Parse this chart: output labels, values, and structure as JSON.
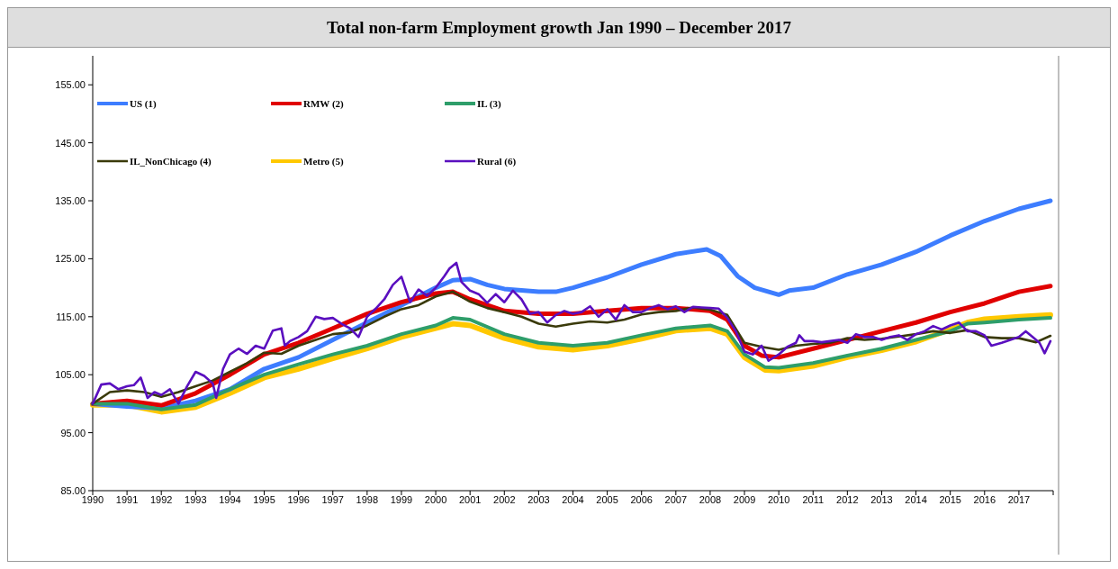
{
  "chart_data": {
    "type": "line",
    "title": "Total non-farm Employment growth Jan 1990 – December 2017",
    "xlim": [
      1990,
      2018
    ],
    "xticks": [
      1990,
      1991,
      1992,
      1993,
      1994,
      1995,
      1996,
      1997,
      1998,
      1999,
      2000,
      2001,
      2002,
      2003,
      2004,
      2005,
      2006,
      2007,
      2008,
      2009,
      2010,
      2011,
      2012,
      2013,
      2014,
      2015,
      2016,
      2017,
      {
        "value": 2018,
        "label": null
      }
    ],
    "ylim": [
      85,
      160
    ],
    "yticks": [
      {
        "value": 85,
        "label": "85.00"
      },
      {
        "value": 95,
        "label": "95.00"
      },
      {
        "value": 105,
        "label": "105.00"
      },
      {
        "value": 115,
        "label": "115.00"
      },
      {
        "value": 125,
        "label": "125.00"
      },
      {
        "value": 135,
        "label": "135.00"
      },
      {
        "value": 145,
        "label": "145.00"
      },
      {
        "value": 155,
        "label": "155.00"
      }
    ],
    "grid": false,
    "legend": "top left",
    "marker": "none",
    "line_style": "solid",
    "series": [
      {
        "name": "US (1)",
        "color": "#3d7dff",
        "x": [
          1990,
          1991,
          1992,
          1993,
          1994,
          1995,
          1996,
          1997,
          1998,
          1999,
          2000,
          2000.5,
          2001,
          2001.5,
          2002,
          2003,
          2003.5,
          2004,
          2005,
          2006,
          2007,
          2007.9,
          2008.3,
          2008.8,
          2009.3,
          2010,
          2010.3,
          2011,
          2012,
          2013,
          2014,
          2015,
          2016,
          2017,
          2017.92
        ],
        "values": [
          100,
          99.5,
          99.2,
          100.5,
          102.5,
          106,
          108,
          111,
          114,
          117,
          120,
          121.3,
          121.5,
          120.5,
          119.8,
          119.3,
          119.3,
          120,
          121.8,
          124,
          125.8,
          126.6,
          125.5,
          122,
          120,
          118.8,
          119.5,
          120,
          122.3,
          124,
          126.2,
          129,
          131.5,
          133.6,
          135
        ]
      },
      {
        "name": "RMW (2)",
        "color": "#e00000",
        "x": [
          1990,
          1991,
          1992,
          1993,
          1994,
          1995,
          1996,
          1997,
          1998,
          1999,
          2000,
          2000.5,
          2001,
          2002,
          2003,
          2004,
          2005,
          2006,
          2007,
          2008,
          2008.5,
          2009,
          2009.5,
          2010,
          2011,
          2012,
          2013,
          2014,
          2015,
          2016,
          2017,
          2017.92
        ],
        "values": [
          100,
          100.5,
          99.7,
          101.8,
          105,
          108.5,
          110.5,
          113,
          115.5,
          117.5,
          119,
          119.3,
          118,
          116,
          115.5,
          115.5,
          116,
          116.5,
          116.5,
          116,
          114.5,
          110,
          108.3,
          108,
          109.5,
          111,
          112.5,
          114,
          115.8,
          117.3,
          119.3,
          120.3
        ]
      },
      {
        "name": "IL (3)",
        "color": "#2e9e6a",
        "x": [
          1990,
          1991,
          1992,
          1993,
          1994,
          1995,
          1996,
          1997,
          1998,
          1999,
          2000,
          2000.5,
          2001,
          2002,
          2003,
          2004,
          2005,
          2006,
          2007,
          2008,
          2008.5,
          2009,
          2009.6,
          2010,
          2011,
          2012,
          2013,
          2014,
          2015,
          2015.5,
          2016,
          2017,
          2017.92
        ],
        "values": [
          100,
          100,
          99,
          99.8,
          102.5,
          105,
          106.8,
          108.5,
          110,
          112,
          113.5,
          114.8,
          114.5,
          112,
          110.5,
          110,
          110.5,
          111.8,
          113,
          113.5,
          112.5,
          108.5,
          106.3,
          106.2,
          107,
          108.3,
          109.5,
          111,
          112.5,
          113.8,
          114,
          114.5,
          114.8
        ]
      },
      {
        "name": "IL_NonChicago (4)",
        "color": "#3a3a0a",
        "x": [
          1990,
          1990.5,
          1991,
          1991.5,
          1992,
          1992.5,
          1993,
          1993.5,
          1994,
          1994.5,
          1995,
          1995.5,
          1996,
          1996.5,
          1997,
          1997.5,
          1998,
          1998.5,
          1999,
          1999.5,
          2000,
          2000.5,
          2001,
          2001.5,
          2002,
          2002.5,
          2003,
          2003.5,
          2004,
          2004.5,
          2005,
          2005.5,
          2006,
          2006.5,
          2007,
          2007.5,
          2008,
          2008.5,
          2009,
          2009.5,
          2010,
          2010.5,
          2011,
          2011.5,
          2012,
          2012.5,
          2013,
          2013.5,
          2014,
          2014.5,
          2015,
          2015.5,
          2016,
          2016.5,
          2017,
          2017.5,
          2017.92
        ],
        "values": [
          100,
          102,
          102.3,
          102,
          101.2,
          102,
          103,
          104,
          105.5,
          107,
          108.8,
          108.6,
          110,
          111,
          112,
          112.3,
          113.5,
          115,
          116.3,
          117,
          118.5,
          119.3,
          117.6,
          116.5,
          115.8,
          115,
          113.8,
          113.3,
          113.8,
          114.2,
          114,
          114.5,
          115.4,
          115.8,
          116,
          116.6,
          116.2,
          115.3,
          110.5,
          109.8,
          109.3,
          110,
          110.3,
          110.5,
          111.3,
          111,
          111.2,
          111.6,
          112,
          112.5,
          112.2,
          112.7,
          111.5,
          111.3,
          111.3,
          110.6,
          111.7
        ]
      },
      {
        "name": "Metro (5)",
        "color": "#ffc800",
        "x": [
          1990,
          1991,
          1992,
          1993,
          1994,
          1995,
          1996,
          1997,
          1998,
          1999,
          2000,
          2000.5,
          2001,
          2002,
          2003,
          2004,
          2005,
          2006,
          2007,
          2008,
          2008.5,
          2009,
          2009.6,
          2010,
          2011,
          2012,
          2013,
          2014,
          2015,
          2015.5,
          2016,
          2017,
          2017.92
        ],
        "values": [
          99.8,
          99.8,
          98.6,
          99.4,
          101.8,
          104.5,
          106,
          107.8,
          109.5,
          111.5,
          113,
          113.8,
          113.5,
          111.3,
          109.8,
          109.3,
          110,
          111.2,
          112.6,
          113,
          112,
          108,
          105.8,
          105.7,
          106.5,
          108,
          109.2,
          110.7,
          112.8,
          114,
          114.6,
          115,
          115.3
        ]
      },
      {
        "name": "Rural (6)",
        "color": "#5a0fbf",
        "x": [
          1990,
          1990.25,
          1990.5,
          1990.75,
          1991,
          1991.2,
          1991.4,
          1991.6,
          1991.8,
          1992,
          1992.25,
          1992.5,
          1992.75,
          1993,
          1993.25,
          1993.5,
          1993.6,
          1993.8,
          1994,
          1994.25,
          1994.5,
          1994.75,
          1995,
          1995.25,
          1995.5,
          1995.6,
          1995.75,
          1996,
          1996.25,
          1996.5,
          1996.75,
          1997,
          1997.25,
          1997.5,
          1997.75,
          1998,
          1998.25,
          1998.5,
          1998.75,
          1999,
          1999.25,
          1999.5,
          1999.75,
          2000,
          2000.25,
          2000.4,
          2000.6,
          2000.75,
          2001,
          2001.25,
          2001.5,
          2001.75,
          2002,
          2002.25,
          2002.5,
          2002.75,
          2003,
          2003.25,
          2003.5,
          2003.75,
          2004,
          2004.25,
          2004.5,
          2004.75,
          2005,
          2005.25,
          2005.5,
          2005.75,
          2006,
          2006.25,
          2006.5,
          2006.75,
          2007,
          2007.25,
          2007.5,
          2007.75,
          2008,
          2008.25,
          2008.5,
          2008.75,
          2009,
          2009.25,
          2009.5,
          2009.7,
          2010,
          2010.25,
          2010.5,
          2010.6,
          2010.75,
          2011,
          2011.25,
          2011.5,
          2011.75,
          2012,
          2012.25,
          2012.5,
          2012.75,
          2013,
          2013.25,
          2013.5,
          2013.75,
          2014,
          2014.25,
          2014.5,
          2014.75,
          2015,
          2015.25,
          2015.5,
          2015.75,
          2016,
          2016.2,
          2016.5,
          2016.75,
          2017,
          2017.2,
          2017.4,
          2017.6,
          2017.75,
          2017.92
        ],
        "values": [
          100,
          103.3,
          103.5,
          102.5,
          103,
          103.2,
          104.5,
          101,
          102,
          101.5,
          102.5,
          100,
          103,
          105.5,
          104.8,
          103.5,
          101,
          106,
          108.5,
          109.5,
          108.6,
          110,
          109.5,
          112.6,
          113,
          110,
          110.8,
          111.5,
          112.5,
          115,
          114.6,
          114.8,
          113.8,
          113,
          111.5,
          115,
          116.4,
          118,
          120.5,
          121.9,
          117.5,
          119.7,
          118.6,
          120,
          122,
          123.3,
          124.3,
          121,
          119.5,
          118.9,
          117.4,
          118.9,
          117.5,
          119.5,
          118,
          115.5,
          115.8,
          114,
          115.3,
          116,
          115.5,
          115.8,
          116.8,
          115,
          116.3,
          114.5,
          117,
          115.8,
          115.8,
          116.5,
          117,
          116.3,
          116.8,
          115.8,
          116.7,
          116.6,
          116.5,
          116.4,
          114.8,
          112.5,
          109,
          108.5,
          110,
          107.4,
          108.5,
          109.8,
          110.5,
          111.8,
          110.8,
          110.8,
          110.6,
          110.8,
          111,
          110.5,
          112,
          111.5,
          111.5,
          111,
          111.5,
          111.8,
          111,
          112,
          112.5,
          113.4,
          112.8,
          113.5,
          114,
          112.5,
          112.5,
          111.8,
          110,
          110.5,
          111,
          111.5,
          112.5,
          111.5,
          110.5,
          108.7,
          110.8
        ]
      }
    ]
  }
}
